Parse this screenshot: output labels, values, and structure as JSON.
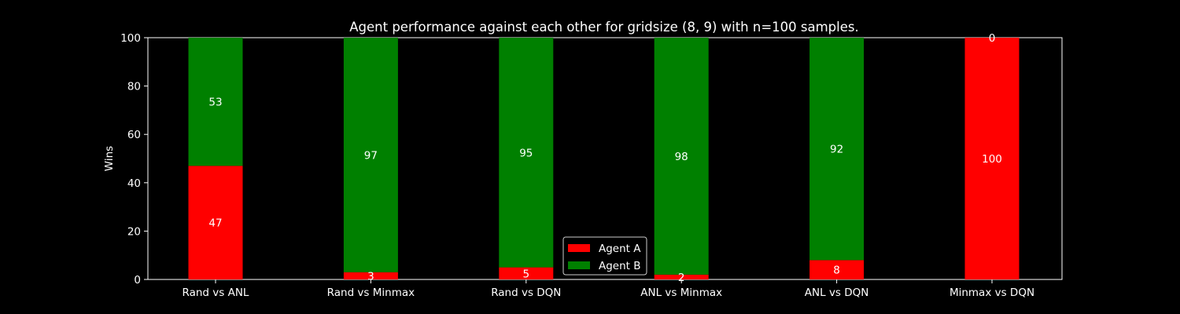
{
  "chart_data": {
    "type": "bar",
    "stacked": true,
    "title": "Agent performance against each other for gridsize (8, 9) with n=100 samples.",
    "xlabel": "",
    "ylabel": "Wins",
    "ylim": [
      0,
      100
    ],
    "yticks": [
      0,
      20,
      40,
      60,
      80,
      100
    ],
    "categories": [
      "Rand vs ANL",
      "Rand vs Minmax",
      "Rand vs DQN",
      "ANL vs Minmax",
      "ANL vs DQN",
      "Minmax vs DQN"
    ],
    "series": [
      {
        "name": "Agent A",
        "color": "#ff0000",
        "values": [
          47,
          3,
          5,
          2,
          8,
          100
        ]
      },
      {
        "name": "Agent B",
        "color": "#008000",
        "values": [
          53,
          97,
          95,
          98,
          92,
          0
        ]
      }
    ],
    "legend_position": "bottom-center",
    "background": "#000000",
    "axis_color": "#ffffff"
  }
}
